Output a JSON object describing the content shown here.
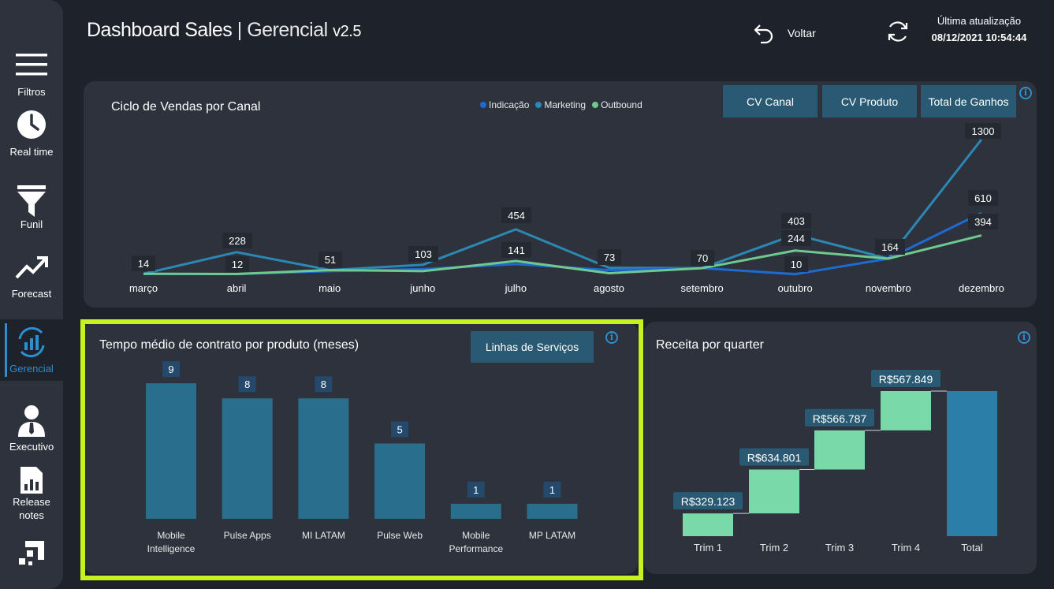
{
  "header": {
    "title_main": "Dashboard Sales",
    "title_sep": "|",
    "title_sub": "Gerencial",
    "version": "v2.5",
    "back_label": "Voltar",
    "update_label": "Última atualização",
    "update_value": "08/12/2021 10:54:44"
  },
  "sidebar": {
    "items": [
      {
        "label": "Filtros",
        "icon": "menu-icon"
      },
      {
        "label": "Real time",
        "icon": "clock-icon"
      },
      {
        "label": "Funil",
        "icon": "funnel-icon"
      },
      {
        "label": "Forecast",
        "icon": "trend-icon"
      },
      {
        "label": "Gerencial",
        "icon": "gerencial-icon"
      },
      {
        "label": "Executivo",
        "icon": "executive-icon"
      },
      {
        "label": "Release notes",
        "icon": "document-icon"
      },
      {
        "label": "",
        "icon": "logo-icon"
      }
    ]
  },
  "colors": {
    "indicacao": "#1e6ad1",
    "marketing": "#2c87b3",
    "outbound": "#6fc98e",
    "bar": "#2a6e8e",
    "waterfall_up": "#79d9a9",
    "waterfall_total": "#2a7ea8",
    "accent": "#2c8fcf",
    "highlight": "#c6f21f"
  },
  "line_card": {
    "title": "Ciclo de Vendas por Canal",
    "buttons": [
      "CV Canal",
      "CV Produto",
      "Total de Ganhos"
    ]
  },
  "bar_card": {
    "title": "Tempo médio de contrato por produto (meses)",
    "button": "Linhas de Serviços"
  },
  "waterfall_card": {
    "title": "Receita por quarter"
  },
  "chart_data": [
    {
      "type": "line",
      "title": "Ciclo de Vendas por Canal",
      "categories": [
        "março",
        "abril",
        "maio",
        "junho",
        "julho",
        "agosto",
        "setembro",
        "outubro",
        "novembro",
        "dezembro"
      ],
      "series": [
        {
          "name": "Indicação",
          "values": [
            14,
            12,
            40,
            60,
            110,
            50,
            70,
            10,
            164,
            610
          ]
        },
        {
          "name": "Marketing",
          "values": [
            14,
            228,
            51,
            103,
            454,
            73,
            70,
            403,
            164,
            1300
          ]
        },
        {
          "name": "Outbound",
          "values": [
            14,
            12,
            51,
            40,
            141,
            20,
            70,
            244,
            164,
            394
          ]
        }
      ],
      "data_labels": [
        {
          "category": "março",
          "value": "14"
        },
        {
          "category": "abril",
          "value": "228"
        },
        {
          "category": "abril",
          "value": "12"
        },
        {
          "category": "maio",
          "value": "51"
        },
        {
          "category": "junho",
          "value": "103"
        },
        {
          "category": "julho",
          "value": "454"
        },
        {
          "category": "julho",
          "value": "141"
        },
        {
          "category": "agosto",
          "value": "73"
        },
        {
          "category": "setembro",
          "value": "70"
        },
        {
          "category": "outubro",
          "value": "403"
        },
        {
          "category": "outubro",
          "value": "244"
        },
        {
          "category": "outubro",
          "value": "10"
        },
        {
          "category": "novembro",
          "value": "164"
        },
        {
          "category": "dezembro",
          "value": "1300"
        },
        {
          "category": "dezembro",
          "value": "610"
        },
        {
          "category": "dezembro",
          "value": "394"
        }
      ],
      "legend": "top-center",
      "grid": false
    },
    {
      "type": "bar",
      "title": "Tempo médio de contrato por produto (meses)",
      "categories": [
        "Mobile Intelligence",
        "Pulse Apps",
        "MI LATAM",
        "Pulse Web",
        "Mobile Performance",
        "MP LATAM"
      ],
      "values": [
        9,
        8,
        8,
        5,
        1,
        1
      ]
    },
    {
      "type": "bar",
      "subtype": "waterfall",
      "title": "Receita por quarter",
      "categories": [
        "Trim 1",
        "Trim 2",
        "Trim 3",
        "Trim 4",
        "Total"
      ],
      "values": [
        329123,
        634801,
        566787,
        567849,
        2098560
      ],
      "labels": [
        "R$329.123",
        "R$634.801",
        "R$566.787",
        "R$567.849"
      ]
    }
  ]
}
